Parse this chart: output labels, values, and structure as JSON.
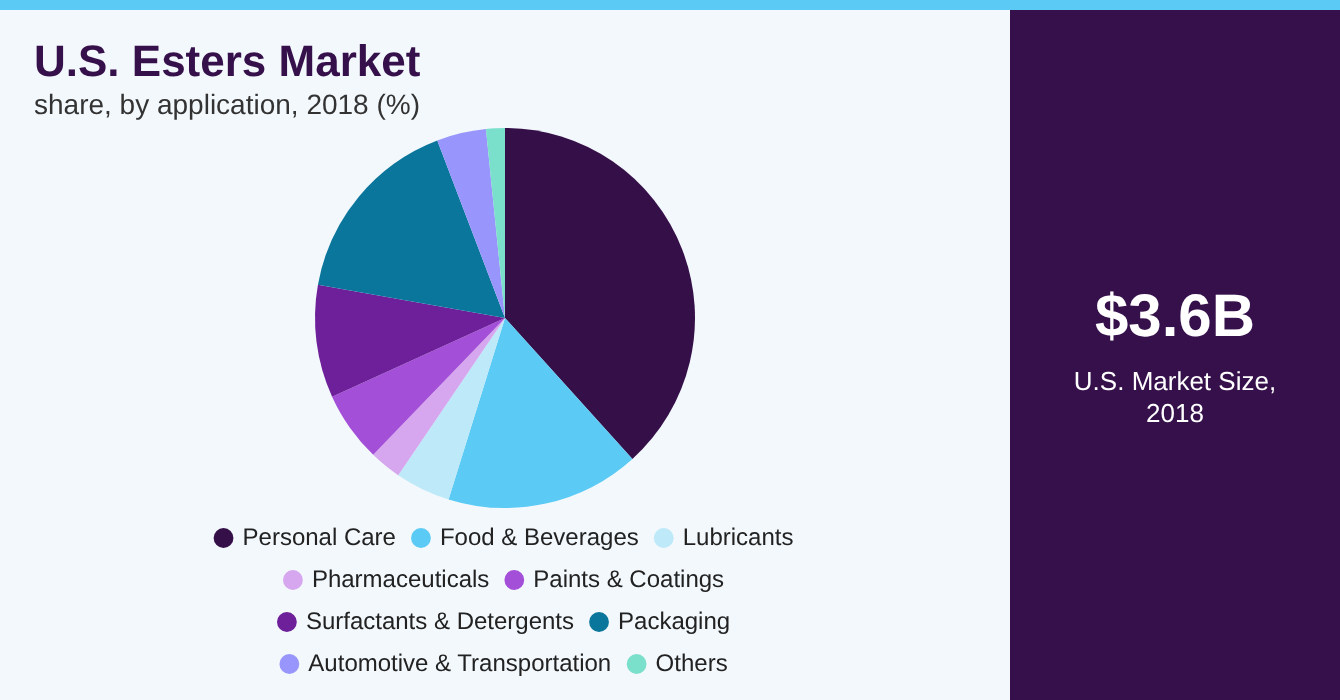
{
  "chart_data": {
    "type": "pie",
    "title": "U.S. Esters Market",
    "subtitle": "share, by application, 2018 (%)",
    "categories": [
      "Personal Care",
      "Food & Beverages",
      "Lubricants",
      "Pharmaceuticals",
      "Paints & Coatings",
      "Surfactants & Detergents",
      "Packaging",
      "Automotive & Transportation",
      "Others"
    ],
    "values": [
      38.3,
      16.5,
      4.7,
      2.7,
      6.0,
      9.6,
      16.4,
      4.2,
      1.6
    ],
    "colors": [
      "#351048",
      "#5bcbf5",
      "#bde9f9",
      "#d6a6ee",
      "#a44fd8",
      "#6e1f9a",
      "#0a769c",
      "#9896fc",
      "#7adfcb"
    ],
    "legend": "bottom",
    "annotations": [
      "$3.6B",
      "U.S. Market Size, 2018"
    ]
  }
}
